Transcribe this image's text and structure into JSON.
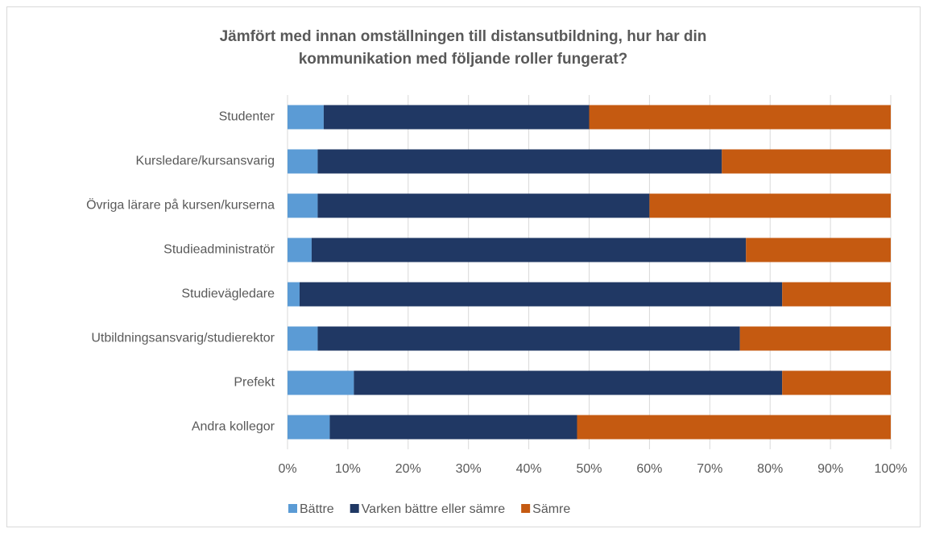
{
  "chart_data": {
    "type": "stacked_barh",
    "title": "Jämfört med innan omställningen till distansutbildning, hur har din kommunikation med följande roller fungerat?",
    "categories": [
      "Studenter",
      "Kursledare/kursansvarig",
      "Övriga lärare på kursen/kurserna",
      "Studieadministratör",
      "Studievägledare",
      "Utbildningsansvarig/studierektor",
      "Prefekt",
      "Andra kollegor"
    ],
    "series": [
      {
        "name": "Bättre",
        "color": "#5b9bd5",
        "values": [
          6,
          5,
          5,
          4,
          2,
          5,
          11,
          7
        ]
      },
      {
        "name": "Varken bättre eller sämre",
        "color": "#203864",
        "values": [
          44,
          67,
          55,
          72,
          80,
          70,
          71,
          41
        ]
      },
      {
        "name": "Sämre",
        "color": "#c55a11",
        "values": [
          50,
          28,
          40,
          24,
          18,
          25,
          18,
          52
        ]
      }
    ],
    "xlim": [
      0,
      100
    ],
    "xticks": [
      {
        "value": 0,
        "label": "0%"
      },
      {
        "value": 10,
        "label": "10%"
      },
      {
        "value": 20,
        "label": "20%"
      },
      {
        "value": 30,
        "label": "30%"
      },
      {
        "value": 40,
        "label": "40%"
      },
      {
        "value": 50,
        "label": "50%"
      },
      {
        "value": 60,
        "label": "60%"
      },
      {
        "value": 70,
        "label": "70%"
      },
      {
        "value": 80,
        "label": "80%"
      },
      {
        "value": 90,
        "label": "90%"
      },
      {
        "value": 100,
        "label": "100%"
      }
    ],
    "grid": true,
    "legend": "bottom"
  }
}
